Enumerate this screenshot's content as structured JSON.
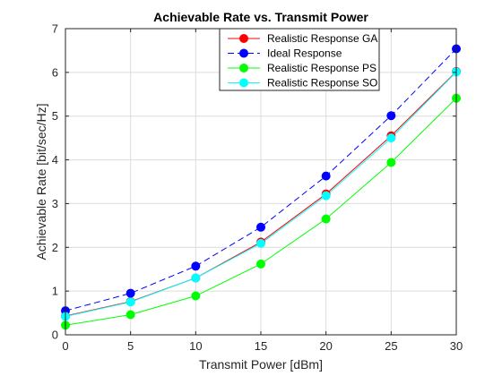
{
  "chart_data": {
    "type": "line",
    "title": "Achievable Rate vs. Transmit Power",
    "xlabel": "Transmit Power [dBm]",
    "ylabel": "Achievable Rate [bit/sec/Hz]",
    "xlim": [
      0,
      30
    ],
    "ylim": [
      0,
      7
    ],
    "xticks": [
      "0",
      "5",
      "10",
      "15",
      "20",
      "25",
      "30"
    ],
    "yticks": [
      "0",
      "1",
      "2",
      "3",
      "4",
      "5",
      "6",
      "7"
    ],
    "grid": true,
    "legend_position": "top-right",
    "x": [
      0,
      5,
      10,
      15,
      20,
      25,
      30
    ],
    "series": [
      {
        "name": "Realistic Response GA",
        "color": "#ff0000",
        "line": "solid",
        "marker": "circle",
        "values": [
          0.43,
          0.76,
          1.3,
          2.12,
          3.22,
          4.55,
          6.02
        ]
      },
      {
        "name": "Ideal Response",
        "color": "#0000ff",
        "line": "dashed",
        "marker": "circle",
        "values": [
          0.55,
          0.95,
          1.57,
          2.46,
          3.63,
          5.01,
          6.54
        ]
      },
      {
        "name": "Realistic Response PS",
        "color": "#00ff00",
        "line": "solid",
        "marker": "circle",
        "values": [
          0.22,
          0.46,
          0.89,
          1.62,
          2.65,
          3.94,
          5.41
        ]
      },
      {
        "name": "Realistic Response SO",
        "color": "#00ffff",
        "line": "solid",
        "marker": "circle",
        "values": [
          0.42,
          0.75,
          1.3,
          2.09,
          3.18,
          4.5,
          6.01
        ]
      }
    ]
  }
}
